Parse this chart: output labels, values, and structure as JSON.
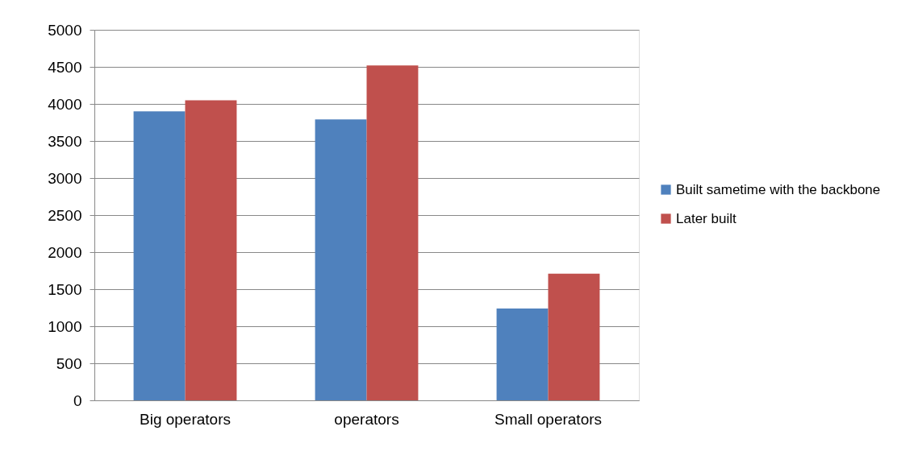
{
  "chart_data": {
    "type": "bar",
    "categories": [
      "Big operators",
      "operators",
      "Small operators"
    ],
    "series": [
      {
        "name": "Built sametime with the backbone",
        "color": "#4f81bd",
        "values": [
          3900,
          3790,
          1240
        ]
      },
      {
        "name": "Later built",
        "color": "#c0504d",
        "values": [
          4050,
          4520,
          1710
        ]
      }
    ],
    "ylim": [
      0,
      5000
    ],
    "yticks": [
      0,
      500,
      1000,
      1500,
      2000,
      2500,
      3000,
      3500,
      4000,
      4500,
      5000
    ],
    "grid": "y",
    "legend": "right"
  }
}
